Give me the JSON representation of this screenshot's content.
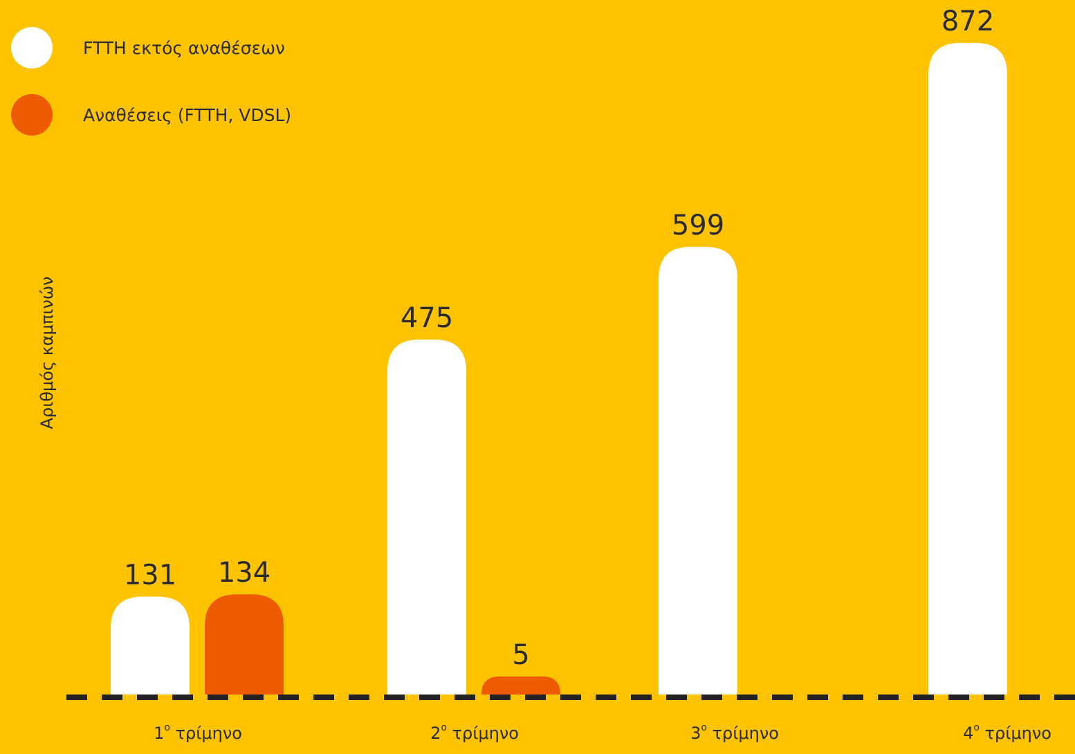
{
  "chart_data": {
    "type": "bar",
    "categories": [
      {
        "num": "1",
        "sup": "ο",
        "word": "τρίμηνο"
      },
      {
        "num": "2",
        "sup": "ο",
        "word": "τρίμηνο"
      },
      {
        "num": "3",
        "sup": "ο",
        "word": "τρίμηνο"
      },
      {
        "num": "4",
        "sup": "ο",
        "word": "τρίμηνο"
      }
    ],
    "series": [
      {
        "name": "FTTH εκτός αναθέσεων",
        "color": "#FFFFFF",
        "values": [
          131,
          475,
          599,
          872
        ]
      },
      {
        "name": "Αναθέσεις (FTTH, VDSL)",
        "color": "#EE5A00",
        "values": [
          134,
          5,
          null,
          null
        ]
      }
    ],
    "ylabel": "Αριθμός καμπινών",
    "legend": "top-left",
    "baseline_style": "dashed",
    "baseline_color": "#222222",
    "label_color": "#2a2a2a"
  }
}
